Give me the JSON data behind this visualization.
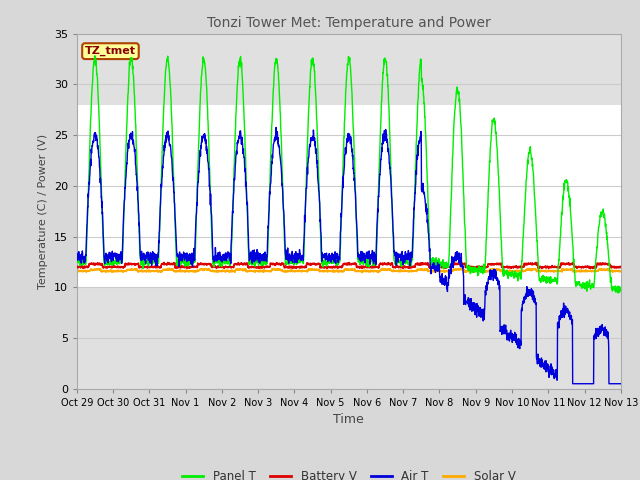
{
  "title": "Tonzi Tower Met: Temperature and Power",
  "xlabel": "Time",
  "ylabel": "Temperature (C) / Power (V)",
  "ylim": [
    0,
    35
  ],
  "yticks": [
    0,
    5,
    10,
    15,
    20,
    25,
    30,
    35
  ],
  "xtick_labels": [
    "Oct 29",
    "Oct 30",
    "Oct 31",
    "Nov 1",
    "Nov 2",
    "Nov 3",
    "Nov 4",
    "Nov 5",
    "Nov 6",
    "Nov 7",
    "Nov 8",
    "Nov 9",
    "Nov 10",
    "Nov 11",
    "Nov 12",
    "Nov 13"
  ],
  "tz_label": "TZ_tmet",
  "tz_label_color": "#880000",
  "tz_label_bg": "#ffff99",
  "tz_label_edge": "#aa4400",
  "legend_entries": [
    "Panel T",
    "Battery V",
    "Air T",
    "Solar V"
  ],
  "legend_colors": [
    "#00ee00",
    "#dd0000",
    "#0000dd",
    "#ffaa00"
  ],
  "panel_t_color": "#00ee00",
  "battery_v_color": "#dd0000",
  "air_t_color": "#0000dd",
  "solar_v_color": "#ffaa00",
  "outer_bg_color": "#d8d8d8",
  "plot_bg_color": "#ffffff",
  "band_gray": "#e0e0e0",
  "grid_color": "#cccccc",
  "title_color": "#555555",
  "n_days": 15,
  "battery_base": 12.0,
  "solar_base": 11.6
}
